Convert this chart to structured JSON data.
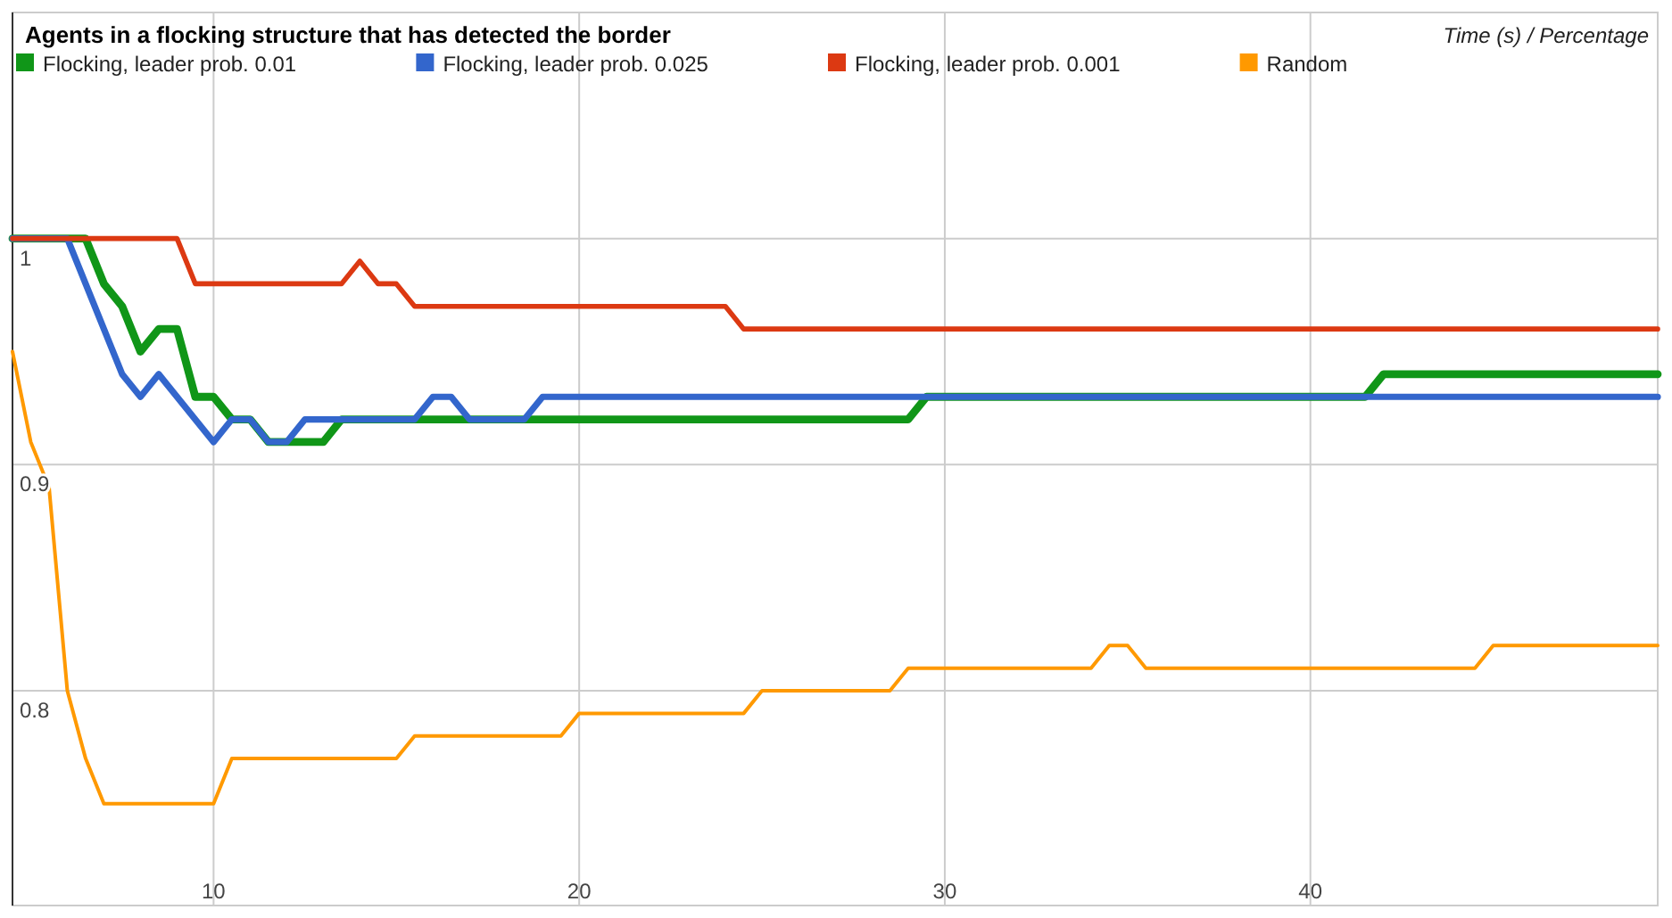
{
  "chart_data": {
    "type": "line",
    "title": "Agents in a flocking structure that has detected the border",
    "annotations": [
      "Time (s) / Percentage"
    ],
    "xlim": [
      4.5,
      49.5
    ],
    "xticks": [
      10,
      20,
      30,
      40
    ],
    "ylim": [
      0.705,
      1.1
    ],
    "yticks": [
      0.8,
      0.9,
      1
    ],
    "grid": true,
    "legend": "top left",
    "series": [
      {
        "name": "Flocking, leader prob. 0.01",
        "color": "#109618",
        "x": [
          4.5,
          6.5,
          7,
          7.5,
          8,
          8.5,
          9,
          9.5,
          10,
          10.5,
          11,
          11.5,
          13,
          13.5,
          29,
          29.5,
          41.5,
          42,
          49.5
        ],
        "values": [
          1,
          1,
          0.98,
          0.97,
          0.95,
          0.96,
          0.96,
          0.93,
          0.93,
          0.92,
          0.92,
          0.91,
          0.91,
          0.92,
          0.92,
          0.93,
          0.93,
          0.94,
          0.94
        ]
      },
      {
        "name": "Flocking, leader prob. 0.025",
        "color": "#3366cc",
        "x": [
          4.5,
          6,
          7.5,
          8,
          8.5,
          10,
          10.5,
          11,
          11.5,
          12,
          12.5,
          15.5,
          16,
          16.5,
          17,
          18.5,
          19,
          49.5
        ],
        "values": [
          1,
          1,
          0.94,
          0.93,
          0.94,
          0.91,
          0.92,
          0.92,
          0.91,
          0.91,
          0.92,
          0.92,
          0.93,
          0.93,
          0.92,
          0.92,
          0.93,
          0.93
        ]
      },
      {
        "name": "Flocking, leader prob. 0.001",
        "color": "#dc3912",
        "x": [
          4.5,
          9,
          9.5,
          13.5,
          14,
          14.5,
          15,
          15.5,
          24,
          24.5,
          49.5
        ],
        "values": [
          1,
          1,
          0.98,
          0.98,
          0.99,
          0.98,
          0.98,
          0.97,
          0.97,
          0.96,
          0.96
        ]
      },
      {
        "name": "Random",
        "color": "#ff9900",
        "x": [
          4.5,
          5,
          5.5,
          6,
          6.5,
          7,
          10,
          10.5,
          15,
          15.5,
          19.5,
          20,
          24.5,
          25,
          28.5,
          29,
          34,
          34.5,
          35,
          35.5,
          44.5,
          45,
          49.5
        ],
        "values": [
          0.95,
          0.91,
          0.89,
          0.8,
          0.77,
          0.75,
          0.75,
          0.77,
          0.77,
          0.78,
          0.78,
          0.79,
          0.79,
          0.8,
          0.8,
          0.81,
          0.81,
          0.82,
          0.82,
          0.81,
          0.81,
          0.82,
          0.82
        ]
      }
    ]
  }
}
